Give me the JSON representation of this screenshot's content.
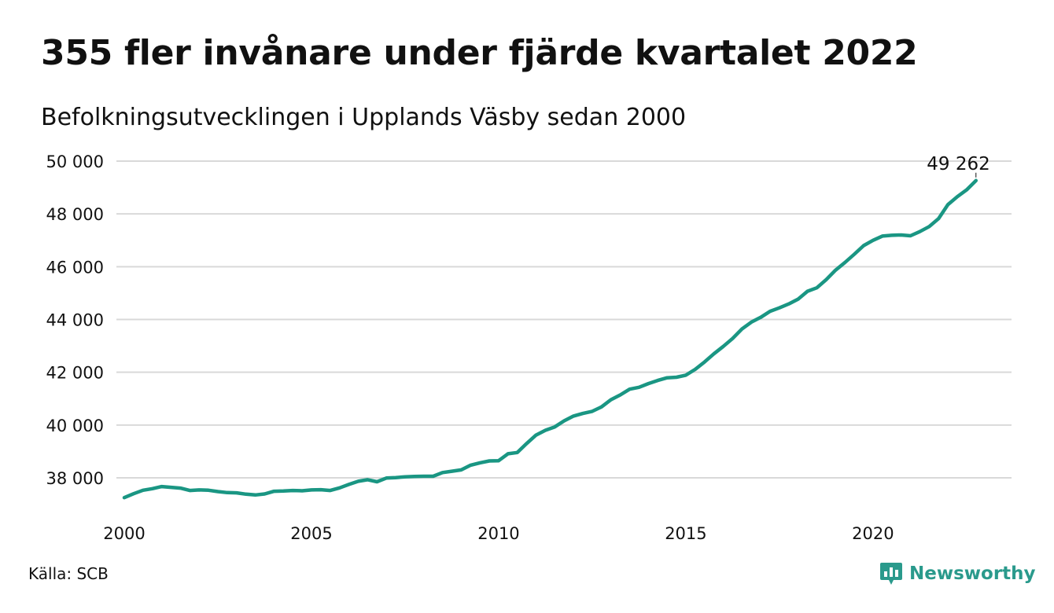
{
  "header": {
    "title": "355 fler invånare under fjärde kvartalet 2022",
    "subtitle": "Befolkningsutvecklingen i Upplands Väsby sedan 2000"
  },
  "footer": {
    "source": "Källa: SCB",
    "brand": "Newsworthy",
    "brand_icon": "chart-bubble-icon"
  },
  "colors": {
    "line": "#1a9683",
    "grid": "#d9d9d9",
    "text": "#111111",
    "brand": "#2a9a8c"
  },
  "chart_data": {
    "type": "line",
    "title": "355 fler invånare under fjärde kvartalet 2022",
    "subtitle": "Befolkningsutvecklingen i Upplands Väsby sedan 2000",
    "xlabel": "",
    "ylabel": "",
    "ylim": [
      37000,
      50000
    ],
    "xlim": [
      2000,
      2023.7
    ],
    "y_ticks": [
      38000,
      40000,
      42000,
      44000,
      46000,
      48000,
      50000
    ],
    "y_tick_labels": [
      "38 000",
      "40 000",
      "42 000",
      "44 000",
      "46 000",
      "48 000",
      "50 000"
    ],
    "x_ticks": [
      2000,
      2005,
      2010,
      2015,
      2020
    ],
    "x_tick_labels": [
      "2000",
      "2005",
      "2010",
      "2015",
      "2020"
    ],
    "grid": "horizontal",
    "end_label": "49 262",
    "series": [
      {
        "x": [
          2000.0,
          2000.25,
          2000.5,
          2000.75,
          2001.0,
          2001.25,
          2001.5,
          2001.75,
          2002.0,
          2002.25,
          2002.5,
          2002.75,
          2003.0,
          2003.25,
          2003.5,
          2003.75,
          2004.0,
          2004.25,
          2004.5,
          2004.75,
          2005.0,
          2005.25,
          2005.5,
          2005.75,
          2006.0,
          2006.25,
          2006.5,
          2006.75,
          2007.0,
          2007.25,
          2007.5,
          2007.75,
          2008.0,
          2008.25,
          2008.5,
          2008.75,
          2009.0,
          2009.25,
          2009.5,
          2009.75,
          2010.0,
          2010.25,
          2010.5,
          2010.75,
          2011.0,
          2011.25,
          2011.5,
          2011.75,
          2012.0,
          2012.25,
          2012.5,
          2012.75,
          2013.0,
          2013.25,
          2013.5,
          2013.75,
          2014.0,
          2014.25,
          2014.5,
          2014.75,
          2015.0,
          2015.25,
          2015.5,
          2015.75,
          2016.0,
          2016.25,
          2016.5,
          2016.75,
          2017.0,
          2017.25,
          2017.5,
          2017.75,
          2018.0,
          2018.25,
          2018.5,
          2018.75,
          2019.0,
          2019.25,
          2019.5,
          2019.75,
          2020.0,
          2020.25,
          2020.5,
          2020.75,
          2021.0,
          2021.25,
          2021.5,
          2021.75,
          2022.0,
          2022.25,
          2022.5,
          2022.75
        ],
        "values": [
          37250,
          37400,
          37530,
          37590,
          37670,
          37640,
          37610,
          37520,
          37540,
          37530,
          37480,
          37440,
          37430,
          37380,
          37350,
          37390,
          37490,
          37500,
          37520,
          37510,
          37540,
          37550,
          37520,
          37620,
          37750,
          37870,
          37930,
          37850,
          37990,
          38010,
          38040,
          38050,
          38060,
          38060,
          38200,
          38250,
          38300,
          38480,
          38570,
          38640,
          38650,
          38910,
          38960,
          39300,
          39620,
          39800,
          39930,
          40160,
          40340,
          40440,
          40520,
          40690,
          40960,
          41140,
          41360,
          41430,
          41570,
          41690,
          41790,
          41810,
          41890,
          42110,
          42390,
          42700,
          42980,
          43280,
          43640,
          43900,
          44080,
          44310,
          44440,
          44590,
          44770,
          45070,
          45200,
          45510,
          45870,
          46160,
          46470,
          46800,
          47000,
          47160,
          47190,
          47200,
          47170,
          47330,
          47520,
          47820,
          48350,
          48650,
          48910,
          49262
        ]
      }
    ]
  }
}
